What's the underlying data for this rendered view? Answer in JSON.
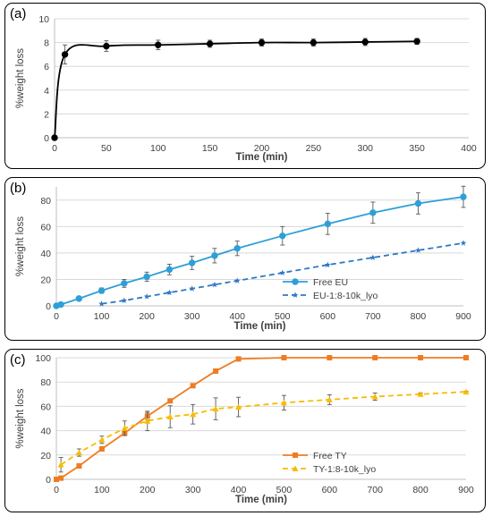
{
  "chart_data": [
    {
      "panel_label": "(a)",
      "type": "line",
      "xlabel": "Time (min)",
      "ylabel": "%weight loss",
      "xlim": [
        0,
        400
      ],
      "ylim": [
        0,
        10
      ],
      "xticks": [
        0,
        50,
        100,
        150,
        200,
        250,
        300,
        350,
        400
      ],
      "yticks": [
        0,
        2,
        4,
        6,
        8,
        10
      ],
      "grid": "horizontal",
      "legend": "none",
      "series": [
        {
          "color": "#000000",
          "marker": "circle",
          "line": "smooth",
          "x": [
            0,
            10,
            50,
            100,
            150,
            200,
            250,
            300,
            350
          ],
          "y": [
            0,
            7.0,
            7.7,
            7.8,
            7.9,
            8.0,
            8.0,
            8.05,
            8.1
          ],
          "err": [
            0,
            0.8,
            0.45,
            0.4,
            0.3,
            0.3,
            0.3,
            0.3,
            0.25
          ]
        }
      ]
    },
    {
      "panel_label": "(b)",
      "type": "line",
      "xlabel": "Time (min)",
      "ylabel": "%weight loss",
      "xlim": [
        0,
        900
      ],
      "ylim": [
        0,
        90
      ],
      "xticks": [
        0,
        100,
        200,
        300,
        400,
        500,
        600,
        700,
        800,
        900
      ],
      "yticks": [
        0,
        20,
        40,
        60,
        80
      ],
      "grid": "horizontal",
      "legend": "bottom-right",
      "series": [
        {
          "name": "Free EU",
          "color": "#2e9fd8",
          "marker": "circle",
          "line": "solid",
          "x": [
            0,
            10,
            50,
            100,
            150,
            200,
            250,
            300,
            350,
            400,
            500,
            600,
            700,
            800,
            900
          ],
          "y": [
            0,
            1,
            5.5,
            11.5,
            17,
            22,
            27.5,
            32.5,
            38,
            43.5,
            53,
            62,
            70.5,
            77.5,
            82.5
          ],
          "err": [
            0,
            1,
            1.5,
            2,
            3,
            3.5,
            4,
            5,
            5.5,
            5.5,
            7,
            8,
            8,
            8,
            8
          ]
        },
        {
          "name": "EU-1:8-10k_lyo",
          "color": "#2e78c6",
          "marker": "star",
          "line": "dashed",
          "x": [
            100,
            150,
            200,
            250,
            300,
            350,
            400,
            500,
            600,
            700,
            800,
            900
          ],
          "y": [
            1.5,
            4,
            7,
            10,
            13,
            16,
            19,
            25,
            31,
            36.5,
            42,
            47.5
          ],
          "err": [
            0,
            0,
            0,
            0,
            0,
            0,
            0,
            0,
            0,
            0,
            0,
            0
          ]
        }
      ]
    },
    {
      "panel_label": "(c)",
      "type": "line",
      "xlabel": "Time (min)",
      "ylabel": "%weight loss",
      "xlim": [
        0,
        900
      ],
      "ylim": [
        0,
        100
      ],
      "xticks": [
        0,
        100,
        200,
        300,
        400,
        500,
        600,
        700,
        800,
        900
      ],
      "yticks": [
        0,
        20,
        40,
        60,
        80,
        100
      ],
      "grid": "horizontal",
      "legend": "bottom-right",
      "series": [
        {
          "name": "Free TY",
          "color": "#ef7c22",
          "marker": "square",
          "line": "solid",
          "x": [
            0,
            10,
            50,
            100,
            150,
            200,
            250,
            300,
            350,
            400,
            500,
            600,
            700,
            800,
            900
          ],
          "y": [
            0,
            1,
            11,
            25,
            38,
            52,
            64.5,
            77,
            89,
            99,
            100,
            100,
            100,
            100,
            100
          ],
          "err": [
            0,
            0,
            0,
            0,
            2,
            3,
            0,
            0,
            0,
            0,
            0,
            0,
            0,
            0,
            0
          ]
        },
        {
          "name": "TY-1:8-10k_lyo",
          "color": "#f7bc00",
          "marker": "triangle",
          "line": "dashed",
          "x": [
            10,
            50,
            100,
            150,
            200,
            250,
            300,
            350,
            400,
            500,
            600,
            700,
            800,
            900
          ],
          "y": [
            12,
            22,
            32.5,
            42,
            48,
            51.5,
            53.5,
            58,
            59.5,
            63,
            65.5,
            68,
            70,
            72
          ],
          "err": [
            6,
            3,
            3,
            6,
            8,
            9,
            8,
            9,
            8,
            6,
            4,
            3,
            1,
            0.5
          ]
        }
      ]
    }
  ]
}
